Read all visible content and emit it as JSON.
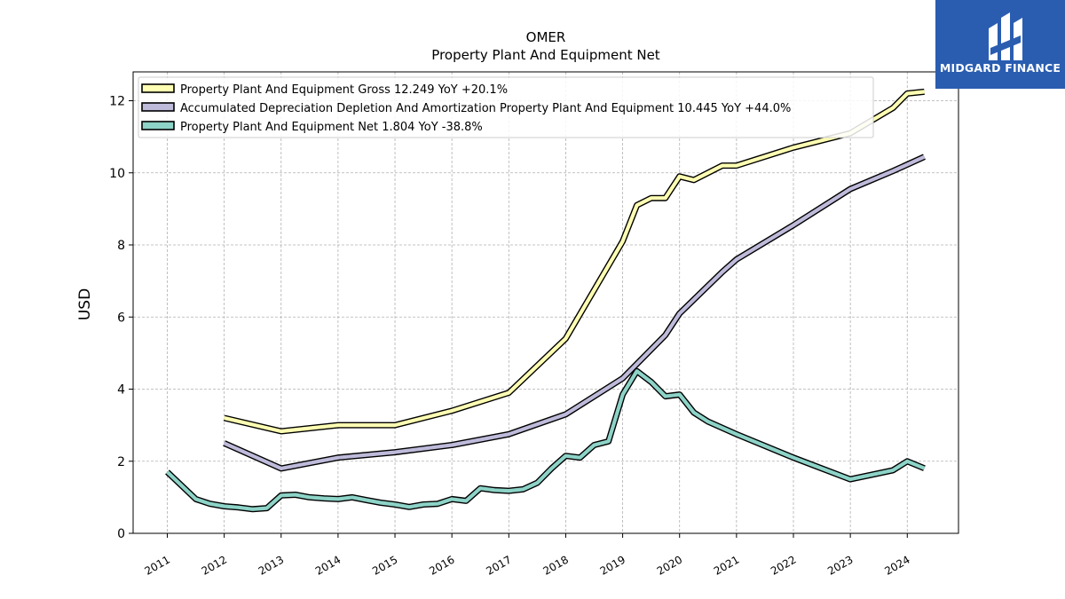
{
  "logo": {
    "text": "MIDGARD FINANCE",
    "background": "#2a5db0"
  },
  "chart_data": {
    "type": "line",
    "title": "OMER",
    "subtitle": "Property Plant And Equipment Net",
    "ylabel": "USD",
    "xlabel": "",
    "ylim": [
      0,
      12.8
    ],
    "xlim": [
      2010.4,
      2024.9
    ],
    "yticks": [
      0,
      2,
      4,
      6,
      8,
      10,
      12
    ],
    "xticks": [
      "2011",
      "2012",
      "2013",
      "2014",
      "2015",
      "2016",
      "2017",
      "2018",
      "2019",
      "2020",
      "2021",
      "2022",
      "2023",
      "2024"
    ],
    "grid": true,
    "legend_position": "top-left",
    "series": [
      {
        "name": "Property Plant And Equipment Gross",
        "legend": "Property Plant And Equipment Gross  12.249 YoY +20.1%",
        "color": "#ffffb3",
        "points": [
          [
            2012.0,
            3.2
          ],
          [
            2013.0,
            2.83
          ],
          [
            2014.0,
            3.0
          ],
          [
            2015.0,
            3.0
          ],
          [
            2016.0,
            3.4
          ],
          [
            2017.0,
            3.9
          ],
          [
            2018.0,
            5.4
          ],
          [
            2019.0,
            8.1
          ],
          [
            2019.25,
            9.1
          ],
          [
            2019.5,
            9.3
          ],
          [
            2019.75,
            9.3
          ],
          [
            2020.0,
            9.9
          ],
          [
            2020.25,
            9.8
          ],
          [
            2020.5,
            10.0
          ],
          [
            2020.75,
            10.2
          ],
          [
            2021.0,
            10.2
          ],
          [
            2022.0,
            10.7
          ],
          [
            2023.0,
            11.1
          ],
          [
            2023.75,
            11.8
          ],
          [
            2024.0,
            12.2
          ],
          [
            2024.3,
            12.249
          ]
        ]
      },
      {
        "name": "Accumulated Depreciation Depletion And Amortization Property Plant And Equipment",
        "legend": "Accumulated Depreciation Depletion And Amortization Property Plant And Equipment  10.445 YoY +44.0%",
        "color": "#bebada",
        "points": [
          [
            2012.0,
            2.5
          ],
          [
            2013.0,
            1.8
          ],
          [
            2014.0,
            2.1
          ],
          [
            2015.0,
            2.25
          ],
          [
            2016.0,
            2.45
          ],
          [
            2017.0,
            2.75
          ],
          [
            2018.0,
            3.3
          ],
          [
            2019.0,
            4.3
          ],
          [
            2019.75,
            5.5
          ],
          [
            2020.0,
            6.1
          ],
          [
            2020.75,
            7.25
          ],
          [
            2021.0,
            7.6
          ],
          [
            2022.0,
            8.55
          ],
          [
            2023.0,
            9.55
          ],
          [
            2023.75,
            10.05
          ],
          [
            2024.3,
            10.445
          ]
        ]
      },
      {
        "name": "Property Plant And Equipment Net",
        "legend": "Property Plant And Equipment Net  1.804 YoY -38.8%",
        "color": "#8dd3c7",
        "points": [
          [
            2011.0,
            1.7
          ],
          [
            2011.5,
            0.95
          ],
          [
            2011.75,
            0.82
          ],
          [
            2012.0,
            0.75
          ],
          [
            2012.25,
            0.72
          ],
          [
            2012.5,
            0.67
          ],
          [
            2012.75,
            0.7
          ],
          [
            2013.0,
            1.05
          ],
          [
            2013.25,
            1.07
          ],
          [
            2013.5,
            1.0
          ],
          [
            2013.75,
            0.97
          ],
          [
            2014.0,
            0.95
          ],
          [
            2014.25,
            1.0
          ],
          [
            2014.5,
            0.92
          ],
          [
            2014.75,
            0.85
          ],
          [
            2015.0,
            0.8
          ],
          [
            2015.25,
            0.73
          ],
          [
            2015.5,
            0.8
          ],
          [
            2015.75,
            0.82
          ],
          [
            2016.0,
            0.95
          ],
          [
            2016.25,
            0.9
          ],
          [
            2016.5,
            1.25
          ],
          [
            2016.75,
            1.2
          ],
          [
            2017.0,
            1.18
          ],
          [
            2017.25,
            1.22
          ],
          [
            2017.5,
            1.4
          ],
          [
            2017.75,
            1.8
          ],
          [
            2018.0,
            2.15
          ],
          [
            2018.25,
            2.1
          ],
          [
            2018.5,
            2.45
          ],
          [
            2018.75,
            2.55
          ],
          [
            2019.0,
            3.85
          ],
          [
            2019.25,
            4.5
          ],
          [
            2019.5,
            4.2
          ],
          [
            2019.75,
            3.8
          ],
          [
            2020.0,
            3.85
          ],
          [
            2020.25,
            3.35
          ],
          [
            2020.5,
            3.1
          ],
          [
            2021.0,
            2.75
          ],
          [
            2022.0,
            2.1
          ],
          [
            2023.0,
            1.5
          ],
          [
            2023.75,
            1.75
          ],
          [
            2024.0,
            2.0
          ],
          [
            2024.3,
            1.804
          ]
        ]
      }
    ]
  }
}
